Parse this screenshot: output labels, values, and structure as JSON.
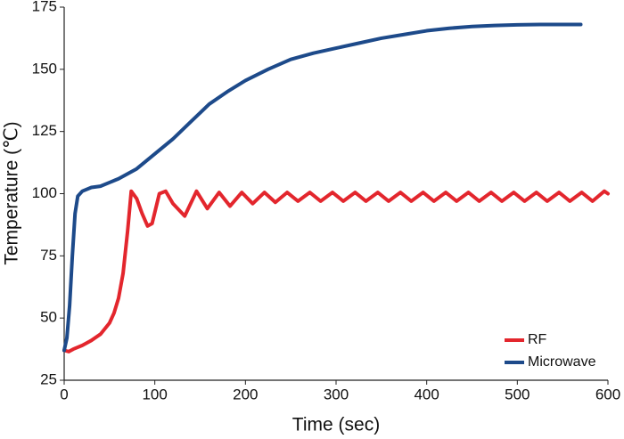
{
  "chart_data": {
    "type": "line",
    "x_label": "Time (sec)",
    "y_label": "Temperature (℃)",
    "xlim": [
      0,
      600
    ],
    "xticks": [
      0,
      100,
      200,
      300,
      400,
      500,
      600
    ],
    "ylim": [
      25,
      175
    ],
    "yticks": [
      25,
      50,
      75,
      100,
      125,
      150,
      175
    ],
    "grid": false,
    "legend": "lower right",
    "series": [
      {
        "name": "RF",
        "color": "#e3262d",
        "x": [
          0,
          5,
          10,
          20,
          30,
          40,
          50,
          55,
          60,
          65,
          70,
          74,
          80,
          86,
          92,
          97,
          105,
          112,
          120,
          133,
          146,
          158,
          171,
          183,
          196,
          208,
          221,
          233,
          246,
          258,
          271,
          283,
          296,
          308,
          321,
          333,
          346,
          358,
          371,
          383,
          396,
          408,
          421,
          433,
          446,
          458,
          471,
          483,
          496,
          508,
          521,
          533,
          546,
          558,
          571,
          583,
          596,
          600
        ],
        "values": [
          37,
          36.5,
          37.5,
          39,
          41,
          43.5,
          48,
          52,
          58,
          68,
          85,
          101,
          98,
          92,
          87,
          88,
          100,
          101,
          96,
          91,
          101,
          94,
          100.5,
          95,
          100.5,
          96,
          100.5,
          96.5,
          100.5,
          97,
          100.5,
          97,
          100.5,
          97,
          100.5,
          97,
          100.5,
          97,
          100.5,
          97,
          100.5,
          97,
          100.5,
          97,
          100.5,
          97,
          100.5,
          97,
          100.5,
          97,
          100.5,
          97,
          100.5,
          97,
          100.5,
          97,
          101,
          100
        ]
      },
      {
        "name": "Microwave",
        "color": "#1d4a8a",
        "x": [
          0,
          3,
          6,
          9,
          12,
          15,
          20,
          30,
          40,
          50,
          60,
          80,
          100,
          120,
          140,
          160,
          180,
          200,
          225,
          250,
          275,
          300,
          325,
          350,
          375,
          400,
          425,
          450,
          475,
          500,
          525,
          550,
          570
        ],
        "values": [
          37,
          42,
          55,
          75,
          92,
          99,
          101,
          102.5,
          103,
          104.5,
          106,
          110,
          116,
          122,
          129,
          136,
          141,
          145.5,
          150,
          154,
          156.5,
          158.5,
          160.5,
          162.5,
          164,
          165.5,
          166.5,
          167.2,
          167.6,
          167.9,
          168,
          168,
          168
        ]
      }
    ]
  }
}
